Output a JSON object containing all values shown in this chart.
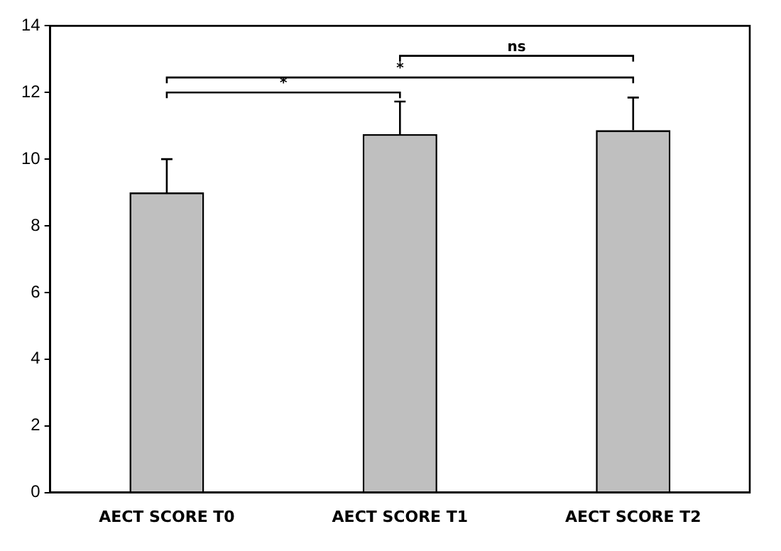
{
  "chart_data": {
    "type": "bar",
    "categories": [
      "AECT SCORE T0",
      "AECT SCORE T1",
      "AECT SCORE T2"
    ],
    "values": [
      9.0,
      10.75,
      10.87
    ],
    "errors": [
      [
        9.0,
        10.0
      ],
      [
        10.75,
        11.73
      ],
      [
        10.87,
        11.85
      ]
    ],
    "color": "#bfbfbf",
    "ylim": [
      0,
      14
    ],
    "yticks": [
      0,
      2,
      4,
      6,
      8,
      10,
      12,
      14
    ],
    "grid": false,
    "legend": false,
    "annotations": [
      "*",
      "*",
      "ns"
    ]
  }
}
